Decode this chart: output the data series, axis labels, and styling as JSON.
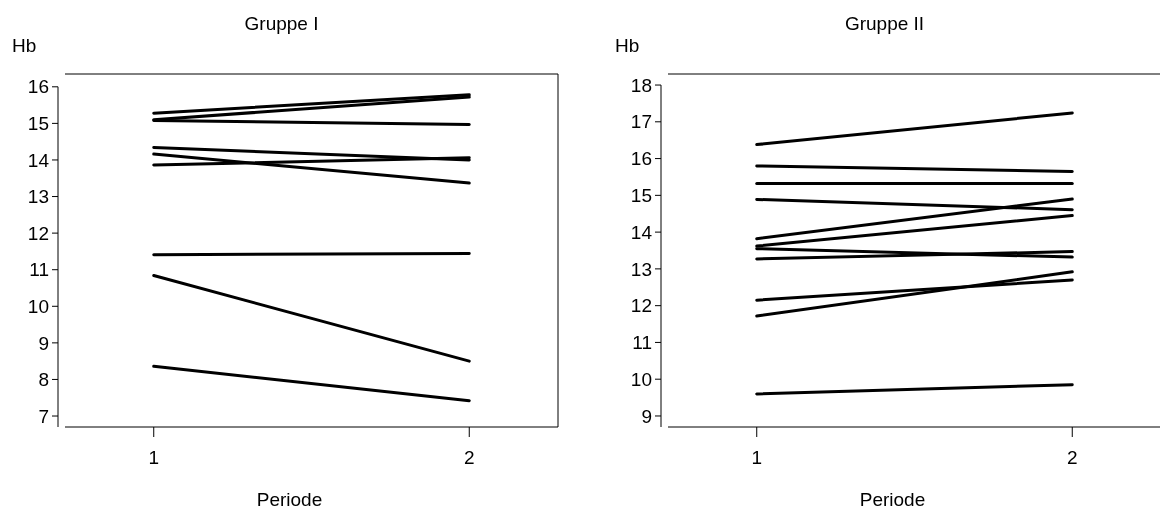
{
  "chart_data": [
    {
      "type": "line",
      "title": "Gruppe I",
      "xlabel": "Periode",
      "ylabel": "Hb",
      "categories": [
        "1",
        "2"
      ],
      "ylim": [
        6.7,
        16.35
      ],
      "yticks": [
        7,
        8,
        9,
        10,
        11,
        12,
        13,
        14,
        15,
        16
      ],
      "series": [
        {
          "color": "#000000",
          "values": [
            15.28,
            15.78
          ]
        },
        {
          "color": "#000000",
          "values": [
            15.1,
            15.72
          ]
        },
        {
          "color": "#000000",
          "values": [
            15.08,
            14.97
          ]
        },
        {
          "color": "#000000",
          "values": [
            14.34,
            14.0
          ]
        },
        {
          "color": "#000000",
          "values": [
            14.16,
            13.37
          ]
        },
        {
          "color": "#000000",
          "values": [
            13.86,
            14.06
          ]
        },
        {
          "color": "#000000",
          "values": [
            11.41,
            11.44
          ]
        },
        {
          "color": "#000000",
          "values": [
            10.84,
            8.5
          ]
        },
        {
          "color": "#000000",
          "values": [
            8.36,
            7.42
          ]
        }
      ]
    },
    {
      "type": "line",
      "title": "Gruppe II",
      "xlabel": "Periode",
      "ylabel": "Hb",
      "categories": [
        "1",
        "2"
      ],
      "ylim": [
        8.7,
        18.3
      ],
      "yticks": [
        9,
        10,
        11,
        12,
        13,
        14,
        15,
        16,
        17,
        18
      ],
      "series": [
        {
          "color": "#000000",
          "values": [
            16.38,
            17.24
          ]
        },
        {
          "color": "#000000",
          "values": [
            15.8,
            15.65
          ]
        },
        {
          "color": "#000000",
          "values": [
            15.32,
            15.32
          ]
        },
        {
          "color": "#000000",
          "values": [
            14.89,
            14.61
          ]
        },
        {
          "color": "#000000",
          "values": [
            13.82,
            14.9
          ]
        },
        {
          "color": "#000000",
          "values": [
            13.62,
            14.45
          ]
        },
        {
          "color": "#000000",
          "values": [
            13.55,
            13.32
          ]
        },
        {
          "color": "#000000",
          "values": [
            13.27,
            13.47
          ]
        },
        {
          "color": "#000000",
          "values": [
            12.15,
            12.7
          ]
        },
        {
          "color": "#000000",
          "values": [
            11.72,
            12.92
          ]
        },
        {
          "color": "#000000",
          "values": [
            9.6,
            9.85
          ]
        }
      ]
    }
  ]
}
